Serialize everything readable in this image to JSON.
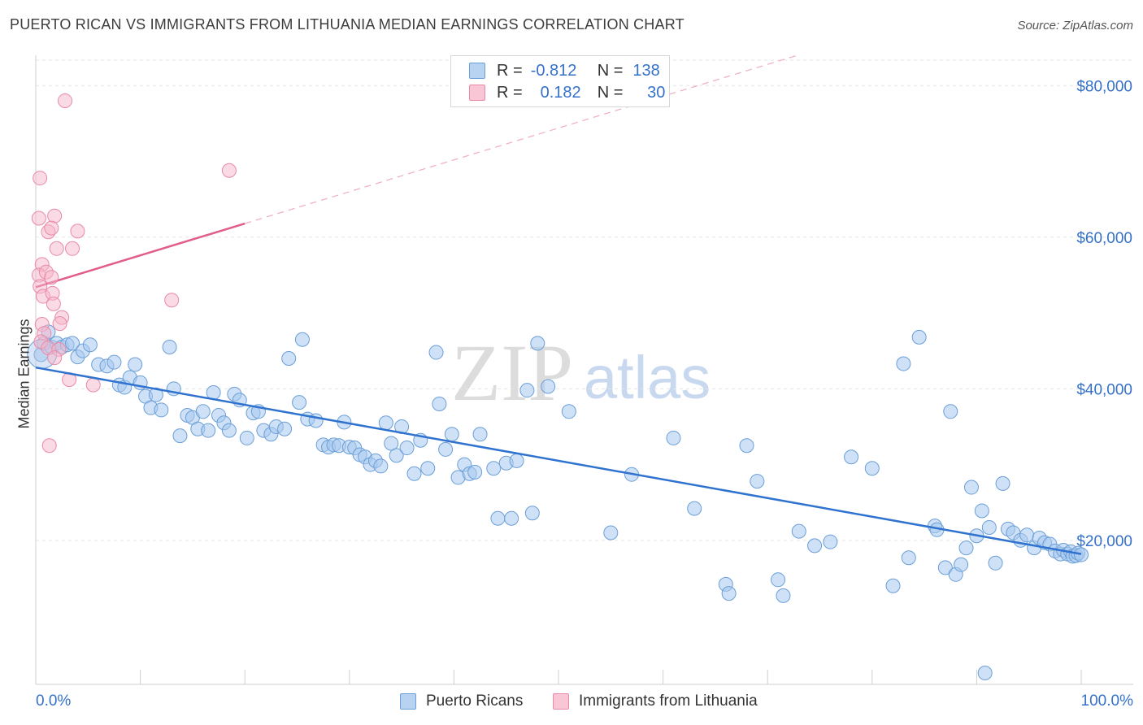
{
  "title": "PUERTO RICAN VS IMMIGRANTS FROM LITHUANIA MEDIAN EARNINGS CORRELATION CHART",
  "source": "Source: ZipAtlas.com",
  "watermark": {
    "zip": "ZIP",
    "atlas": "atlas"
  },
  "legend": {
    "row1": {
      "r_label": "R =",
      "r_value": "-0.812",
      "n_label": "N =",
      "n_value": "138"
    },
    "row2": {
      "r_label": "R =",
      "r_value": "0.182",
      "n_label": "N =",
      "n_value": "30"
    }
  },
  "bottom_legend": {
    "series1": "Puerto Ricans",
    "series2": "Immigrants from Lithuania"
  },
  "colors": {
    "blue_fill": "#a8c8ee",
    "blue_stroke": "#6b9fd8",
    "blue_line": "#2f72cf",
    "pink_fill": "#f6b6c9",
    "pink_stroke": "#e98aa8",
    "pink_line": "#e35d8a",
    "axis_text": "#3571c9",
    "grid": "#e6e6e6"
  },
  "chart_data": {
    "type": "scatter",
    "title": "PUERTO RICAN VS IMMIGRANTS FROM LITHUANIA MEDIAN EARNINGS CORRELATION CHART",
    "xlabel": "",
    "ylabel": "Median Earnings",
    "x_tick_labels": [
      "0.0%",
      "100.0%"
    ],
    "y_tick_labels": [
      "$20,000",
      "$40,000",
      "$60,000",
      "$80,000"
    ],
    "y_ticks": [
      20000,
      40000,
      60000,
      80000
    ],
    "xlim": [
      0,
      100
    ],
    "ylim": [
      1000,
      84000
    ],
    "grid": true,
    "legend_position": "top-center",
    "series": [
      {
        "name": "Puerto Ricans",
        "r": -0.812,
        "n": 138,
        "trend": {
          "x0": 0,
          "y0": 42800,
          "x1": 100,
          "y1": 18200
        },
        "points": [
          [
            0.5,
            44500
          ],
          [
            0.8,
            46000
          ],
          [
            1.2,
            47500
          ],
          [
            1.5,
            45500
          ],
          [
            2,
            46000
          ],
          [
            2.5,
            45500
          ],
          [
            3,
            45800
          ],
          [
            3.5,
            46000
          ],
          [
            4,
            44200
          ],
          [
            4.5,
            45000
          ],
          [
            5.2,
            45800
          ],
          [
            6,
            43200
          ],
          [
            6.8,
            43000
          ],
          [
            7.5,
            43500
          ],
          [
            8,
            40500
          ],
          [
            8.5,
            40200
          ],
          [
            9,
            41500
          ],
          [
            9.5,
            43200
          ],
          [
            10,
            40800
          ],
          [
            10.5,
            39000
          ],
          [
            11,
            37500
          ],
          [
            11.5,
            39200
          ],
          [
            12,
            37200
          ],
          [
            12.8,
            45500
          ],
          [
            13.2,
            40000
          ],
          [
            13.8,
            33800
          ],
          [
            14.5,
            36500
          ],
          [
            15,
            36200
          ],
          [
            15.5,
            34700
          ],
          [
            16,
            37000
          ],
          [
            16.5,
            34500
          ],
          [
            17,
            39500
          ],
          [
            17.5,
            36500
          ],
          [
            18,
            35500
          ],
          [
            18.5,
            34500
          ],
          [
            19,
            39300
          ],
          [
            19.5,
            38500
          ],
          [
            20.2,
            33500
          ],
          [
            20.8,
            36800
          ],
          [
            21.3,
            37000
          ],
          [
            21.8,
            34500
          ],
          [
            22.5,
            34000
          ],
          [
            23,
            35000
          ],
          [
            23.8,
            34700
          ],
          [
            24.2,
            44000
          ],
          [
            25.2,
            38200
          ],
          [
            25.5,
            46500
          ],
          [
            26,
            36000
          ],
          [
            26.8,
            35800
          ],
          [
            27.5,
            32600
          ],
          [
            28,
            32300
          ],
          [
            28.5,
            32600
          ],
          [
            29,
            32500
          ],
          [
            29.5,
            35600
          ],
          [
            30,
            32300
          ],
          [
            30.5,
            32200
          ],
          [
            31,
            31300
          ],
          [
            31.5,
            31000
          ],
          [
            32,
            30000
          ],
          [
            32.5,
            30500
          ],
          [
            33,
            29800
          ],
          [
            33.5,
            35500
          ],
          [
            34,
            32800
          ],
          [
            34.5,
            31200
          ],
          [
            35,
            35000
          ],
          [
            35.5,
            32200
          ],
          [
            36.2,
            28800
          ],
          [
            36.8,
            33200
          ],
          [
            37.5,
            29500
          ],
          [
            38.3,
            44800
          ],
          [
            38.6,
            38000
          ],
          [
            39.2,
            32000
          ],
          [
            39.8,
            34000
          ],
          [
            40.4,
            28300
          ],
          [
            41,
            30000
          ],
          [
            41.5,
            28800
          ],
          [
            42,
            29000
          ],
          [
            42.5,
            34000
          ],
          [
            43.8,
            29500
          ],
          [
            44.2,
            22900
          ],
          [
            45,
            30200
          ],
          [
            45.5,
            22900
          ],
          [
            46,
            30500
          ],
          [
            47,
            39800
          ],
          [
            47.5,
            23600
          ],
          [
            48,
            46000
          ],
          [
            49,
            40300
          ],
          [
            51,
            37000
          ],
          [
            55,
            21000
          ],
          [
            57,
            28700
          ],
          [
            61,
            33500
          ],
          [
            63,
            24200
          ],
          [
            66,
            14200
          ],
          [
            66.3,
            13000
          ],
          [
            68,
            32500
          ],
          [
            69,
            27800
          ],
          [
            71,
            14800
          ],
          [
            71.5,
            12700
          ],
          [
            73,
            21200
          ],
          [
            74.5,
            19300
          ],
          [
            76,
            19800
          ],
          [
            78,
            31000
          ],
          [
            80,
            29500
          ],
          [
            82,
            14000
          ],
          [
            83,
            43300
          ],
          [
            83.5,
            17700
          ],
          [
            84.5,
            46800
          ],
          [
            86,
            21900
          ],
          [
            86.2,
            21400
          ],
          [
            87,
            16400
          ],
          [
            87.5,
            37000
          ],
          [
            88,
            15500
          ],
          [
            88.5,
            16800
          ],
          [
            89,
            19000
          ],
          [
            89.5,
            27000
          ],
          [
            90,
            20600
          ],
          [
            90.5,
            23900
          ],
          [
            90.8,
            2500
          ],
          [
            91.2,
            21700
          ],
          [
            91.8,
            17000
          ],
          [
            92.5,
            27500
          ],
          [
            93,
            21500
          ],
          [
            93.5,
            21000
          ],
          [
            94.2,
            20000
          ],
          [
            94.8,
            20700
          ],
          [
            95.5,
            19000
          ],
          [
            96,
            20300
          ],
          [
            96.5,
            19700
          ],
          [
            97,
            19500
          ],
          [
            97.5,
            18600
          ],
          [
            98,
            18200
          ],
          [
            98.3,
            18700
          ],
          [
            98.7,
            18200
          ],
          [
            99,
            18500
          ],
          [
            99.2,
            17900
          ],
          [
            99.5,
            18000
          ],
          [
            99.7,
            18300
          ],
          [
            100,
            18100
          ]
        ]
      },
      {
        "name": "Immigrants from Lithuania",
        "r": 0.182,
        "n": 30,
        "trend": {
          "x0": 0,
          "y0": 53400,
          "x1": 20,
          "y1": 61800
        },
        "trend_dashed": {
          "x0": 20,
          "y0": 61800,
          "x1": 100,
          "y1": 95400
        },
        "points": [
          [
            2.8,
            78000
          ],
          [
            18.5,
            68800
          ],
          [
            0.4,
            67800
          ],
          [
            0.3,
            62500
          ],
          [
            1.8,
            62800
          ],
          [
            1.2,
            60700
          ],
          [
            4,
            60800
          ],
          [
            1.5,
            61200
          ],
          [
            2,
            58500
          ],
          [
            3.5,
            58500
          ],
          [
            0.6,
            56400
          ],
          [
            0.3,
            55000
          ],
          [
            1,
            55400
          ],
          [
            1.5,
            54700
          ],
          [
            0.4,
            53500
          ],
          [
            0.7,
            52200
          ],
          [
            1.6,
            52600
          ],
          [
            1.7,
            51200
          ],
          [
            13,
            51700
          ],
          [
            2.5,
            49400
          ],
          [
            2.3,
            48600
          ],
          [
            0.6,
            48500
          ],
          [
            0.8,
            47300
          ],
          [
            0.5,
            46200
          ],
          [
            1.2,
            45400
          ],
          [
            2.2,
            45200
          ],
          [
            1.8,
            44100
          ],
          [
            3.2,
            41200
          ],
          [
            5.5,
            40500
          ],
          [
            1.3,
            32500
          ]
        ]
      }
    ]
  }
}
